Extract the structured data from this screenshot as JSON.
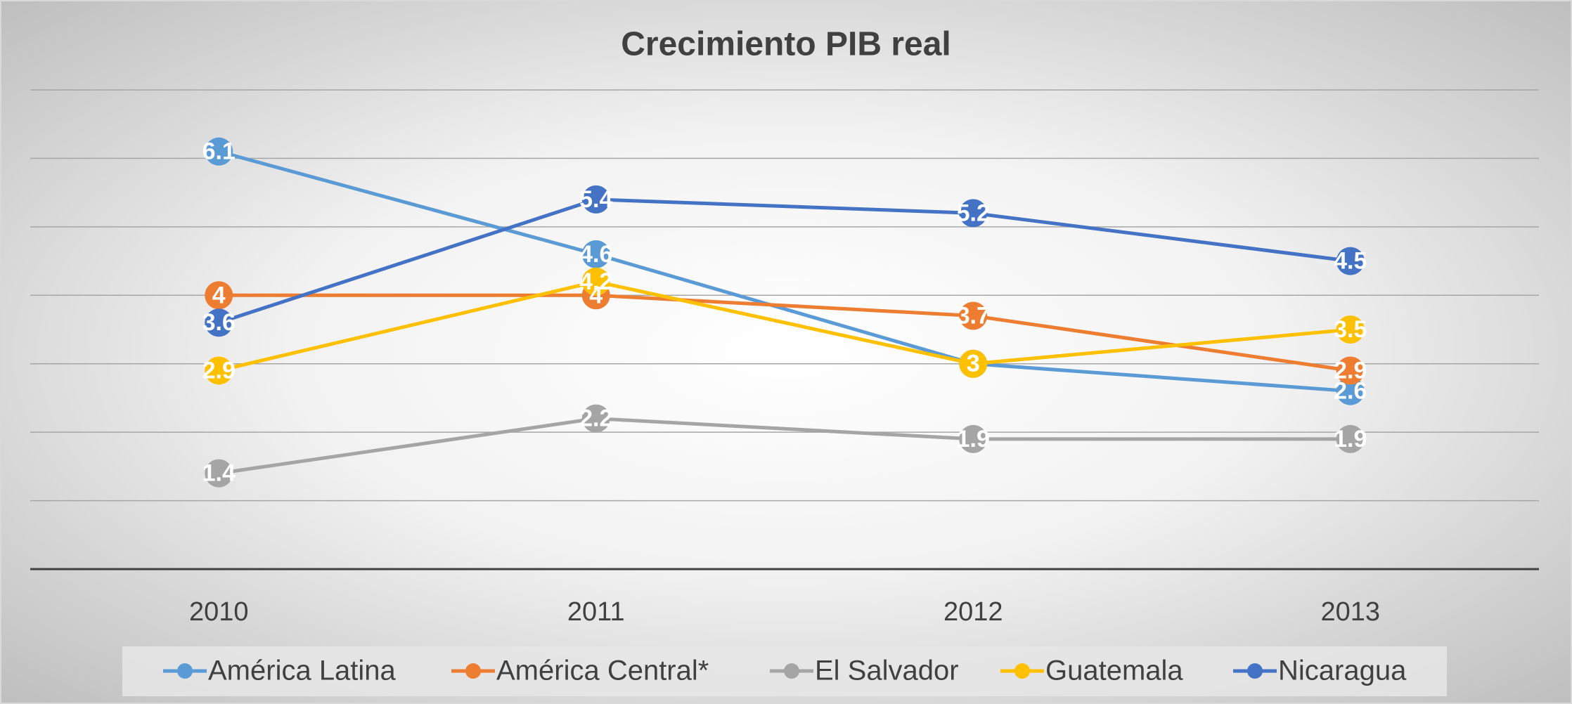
{
  "chart_data": {
    "type": "line",
    "title": "Crecimiento PIB real",
    "categories": [
      "2010",
      "2011",
      "2012",
      "2013"
    ],
    "series": [
      {
        "name": "América Latina",
        "color": "#5b9bd5",
        "values": [
          6.1,
          4.6,
          3,
          2.6
        ]
      },
      {
        "name": "América Central*",
        "color": "#ed7d31",
        "values": [
          4,
          4,
          3.7,
          2.9
        ]
      },
      {
        "name": "El Salvador",
        "color": "#a5a5a5",
        "values": [
          1.4,
          2.2,
          1.9,
          1.9
        ]
      },
      {
        "name": "Guatemala",
        "color": "#ffc000",
        "values": [
          2.9,
          4.2,
          3,
          3.5
        ]
      },
      {
        "name": "Nicaragua",
        "color": "#4472c4",
        "values": [
          3.6,
          5.4,
          5.2,
          4.5
        ]
      }
    ],
    "ylim": [
      0,
      7
    ],
    "yticks": [
      0,
      1,
      2,
      3,
      4,
      5,
      6,
      7
    ],
    "grid": true,
    "data_labels": true,
    "legend": "bottom"
  }
}
